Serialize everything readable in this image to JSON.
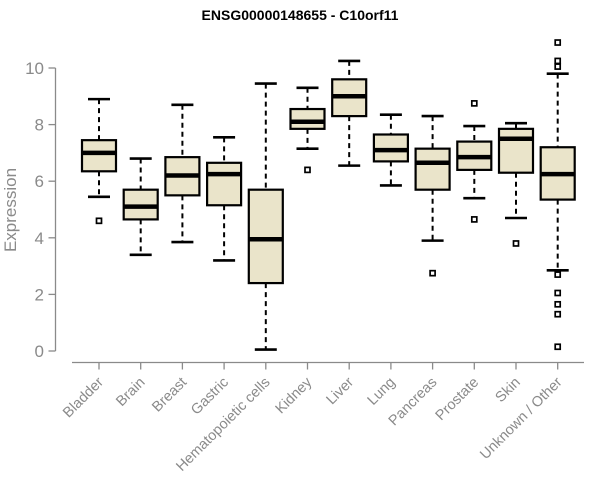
{
  "chart_data": {
    "type": "boxplot",
    "title": "ENSG00000148655 - C10orf11",
    "xlabel": "",
    "ylabel": "Expression",
    "ylim": [
      0,
      10
    ],
    "yticks": [
      0,
      2,
      4,
      6,
      8,
      10
    ],
    "grid": false,
    "legend_position": "none",
    "categories": [
      "Bladder",
      "Brain",
      "Breast",
      "Gastric",
      "Hematopoietic cells",
      "Kidney",
      "Liver",
      "Lung",
      "Pancreas",
      "Prostate",
      "Skin",
      "Unknown / Other"
    ],
    "series": [
      {
        "category": "Bladder",
        "low": 5.45,
        "q1": 6.35,
        "median": 7.0,
        "q3": 7.45,
        "high": 8.9,
        "outliers": [
          4.6
        ]
      },
      {
        "category": "Brain",
        "low": 3.4,
        "q1": 4.65,
        "median": 5.1,
        "q3": 5.7,
        "high": 6.8,
        "outliers": []
      },
      {
        "category": "Breast",
        "low": 3.85,
        "q1": 5.5,
        "median": 6.2,
        "q3": 6.85,
        "high": 8.7,
        "outliers": []
      },
      {
        "category": "Gastric",
        "low": 3.2,
        "q1": 5.15,
        "median": 6.25,
        "q3": 6.65,
        "high": 7.55,
        "outliers": []
      },
      {
        "category": "Hematopoietic cells",
        "low": 0.05,
        "q1": 2.4,
        "median": 3.95,
        "q3": 5.7,
        "high": 9.45,
        "outliers": []
      },
      {
        "category": "Kidney",
        "low": 7.15,
        "q1": 7.85,
        "median": 8.1,
        "q3": 8.55,
        "high": 9.3,
        "outliers": [
          6.4
        ]
      },
      {
        "category": "Liver",
        "low": 6.55,
        "q1": 8.3,
        "median": 9.0,
        "q3": 9.6,
        "high": 10.25,
        "outliers": []
      },
      {
        "category": "Lung",
        "low": 5.85,
        "q1": 6.7,
        "median": 7.1,
        "q3": 7.65,
        "high": 8.35,
        "outliers": []
      },
      {
        "category": "Pancreas",
        "low": 3.9,
        "q1": 5.7,
        "median": 6.65,
        "q3": 7.15,
        "high": 8.3,
        "outliers": [
          2.75
        ]
      },
      {
        "category": "Prostate",
        "low": 5.4,
        "q1": 6.4,
        "median": 6.85,
        "q3": 7.4,
        "high": 7.95,
        "outliers": [
          8.75,
          4.65
        ]
      },
      {
        "category": "Skin",
        "low": 4.7,
        "q1": 6.3,
        "median": 7.5,
        "q3": 7.85,
        "high": 8.05,
        "outliers": [
          3.8
        ]
      },
      {
        "category": "Unknown / Other",
        "low": 2.85,
        "q1": 5.35,
        "median": 6.25,
        "q3": 7.2,
        "high": 9.8,
        "outliers": [
          10.9,
          10.25,
          10.05,
          2.7,
          2.05,
          1.65,
          1.3,
          0.15
        ]
      }
    ]
  },
  "style": {
    "box_fill": "#EAE4CA",
    "box_stroke": "#000000",
    "median_color": "#000000",
    "whisker_color": "#000000",
    "outlier_fill": "#ffffff",
    "axis_color": "#8A8A8A",
    "title_color": "#000000"
  }
}
